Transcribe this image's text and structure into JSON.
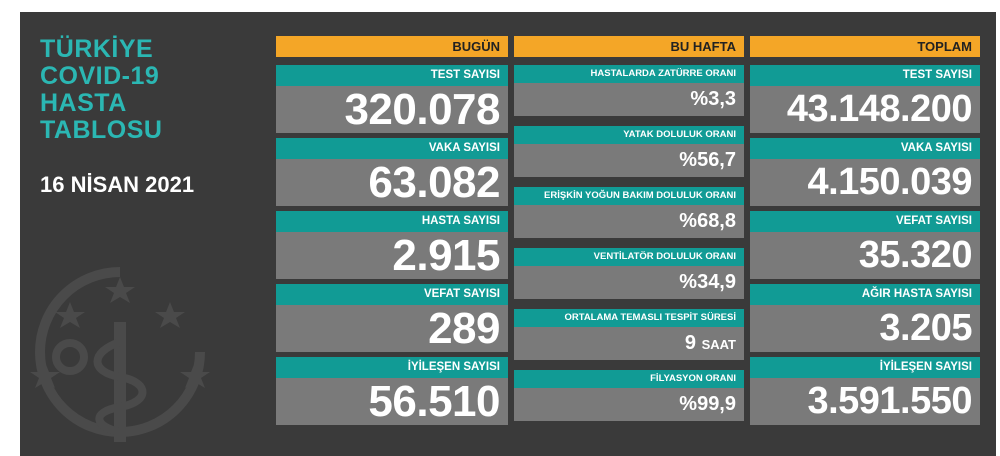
{
  "title": "TÜRKİYE\nCOVID-19\nHASTA\nTABLOSU",
  "date": "16 NİSAN 2021",
  "colors": {
    "accent": "#f4a627",
    "teal": "#119b95",
    "title": "#2bb7b3",
    "panel": "#3a3a3a",
    "value_bg": "#7a7a7a"
  },
  "today": {
    "header": "BUGÜN",
    "items": [
      {
        "label": "TEST SAYISI",
        "value": "320.078"
      },
      {
        "label": "VAKA SAYISI",
        "value": "63.082"
      },
      {
        "label": "HASTA SAYISI",
        "value": "2.915"
      },
      {
        "label": "VEFAT SAYISI",
        "value": "289"
      },
      {
        "label": "İYİLEŞEN SAYISI",
        "value": "56.510"
      }
    ]
  },
  "week": {
    "header": "BU HAFTA",
    "items": [
      {
        "label": "HASTALARDA ZATÜRRE ORANI",
        "value": "%3,3",
        "unit": ""
      },
      {
        "label": "YATAK DOLULUK ORANI",
        "value": "%56,7",
        "unit": ""
      },
      {
        "label": "ERİŞKİN YOĞUN BAKIM DOLULUK ORANI",
        "value": "%68,8",
        "unit": ""
      },
      {
        "label": "VENTİLATÖR DOLULUK ORANI",
        "value": "%34,9",
        "unit": ""
      },
      {
        "label": "ORTALAMA TEMASLI TESPİT SÜRESİ",
        "value": "9",
        "unit": "SAAT"
      },
      {
        "label": "FİLYASYON ORANI",
        "value": "%99,9",
        "unit": ""
      }
    ]
  },
  "total": {
    "header": "TOPLAM",
    "items": [
      {
        "label": "TEST SAYISI",
        "value": "43.148.200"
      },
      {
        "label": "VAKA SAYISI",
        "value": "4.150.039"
      },
      {
        "label": "VEFAT SAYISI",
        "value": "35.320"
      },
      {
        "label": "AĞIR HASTA SAYISI",
        "value": "3.205"
      },
      {
        "label": "İYİLEŞEN SAYISI",
        "value": "3.591.550"
      }
    ]
  }
}
